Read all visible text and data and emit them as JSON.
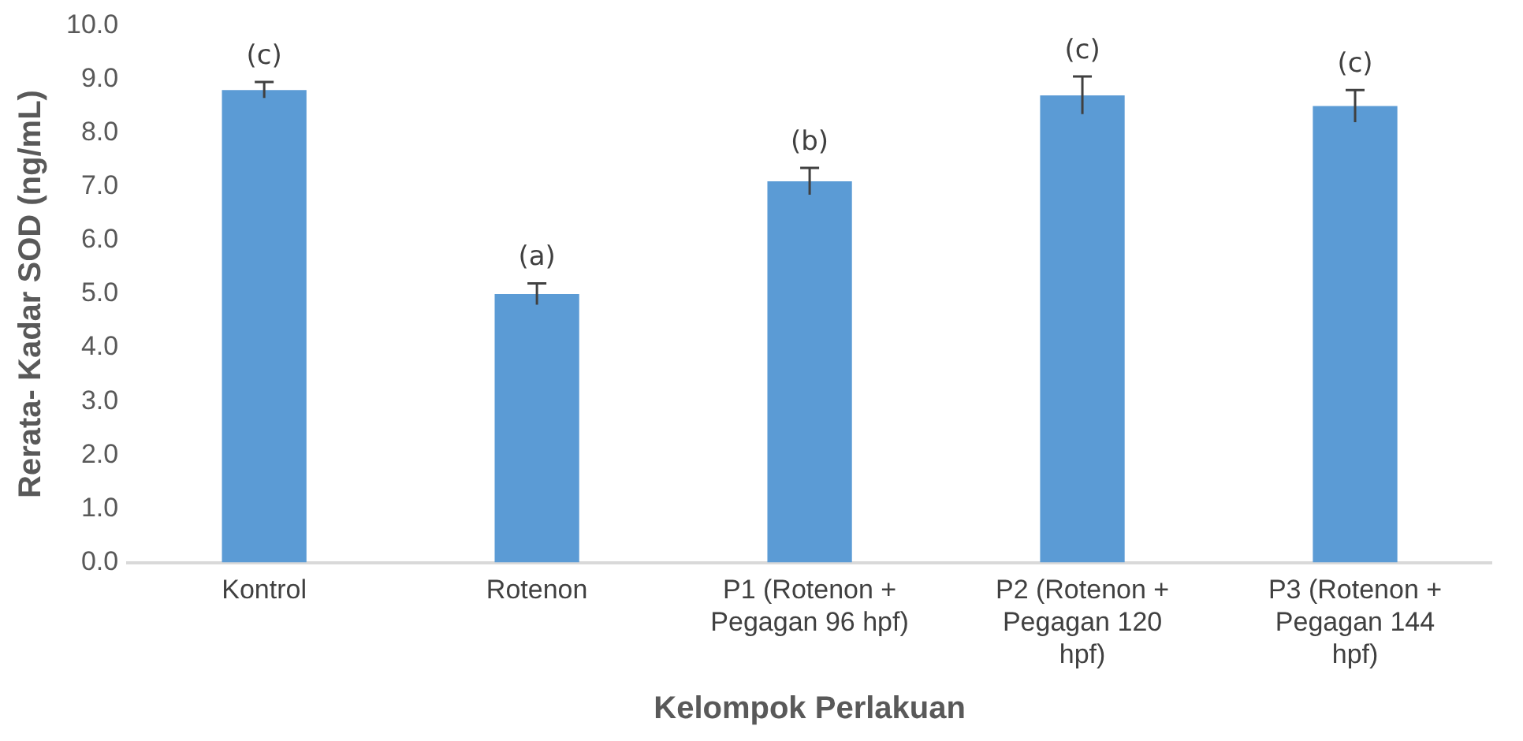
{
  "chart_data": {
    "type": "bar",
    "xlabel": "Kelompok Perlakuan",
    "ylabel": "Rerata- Kadar SOD (ng/mL)",
    "categories": [
      "Kontrol",
      "Rotenon",
      "P1 (Rotenon + Pegagan 96 hpf)",
      "P2 (Rotenon + Pegagan 120 hpf)",
      "P3 (Rotenon + Pegagan 144 hpf)"
    ],
    "values": [
      8.8,
      5.0,
      7.1,
      8.7,
      8.5
    ],
    "errors": [
      0.15,
      0.2,
      0.25,
      0.35,
      0.3
    ],
    "color": "#5b9bd5",
    "ylim": [
      0,
      10
    ],
    "yticks": [
      {
        "value": 0,
        "label": "0.0"
      },
      {
        "value": 1,
        "label": "1.0"
      },
      {
        "value": 2,
        "label": "2.0"
      },
      {
        "value": 3,
        "label": "3.0"
      },
      {
        "value": 4,
        "label": "4.0"
      },
      {
        "value": 5,
        "label": "5.0"
      },
      {
        "value": 6,
        "label": "6.0"
      },
      {
        "value": 7,
        "label": "7.0"
      },
      {
        "value": 8,
        "label": "8.0"
      },
      {
        "value": 9,
        "label": "9.0"
      },
      {
        "value": 10,
        "label": "10.0"
      }
    ],
    "grid": false,
    "annotations": [
      "(c)",
      "(a)",
      "(b)",
      "(c)",
      "(c)"
    ]
  }
}
